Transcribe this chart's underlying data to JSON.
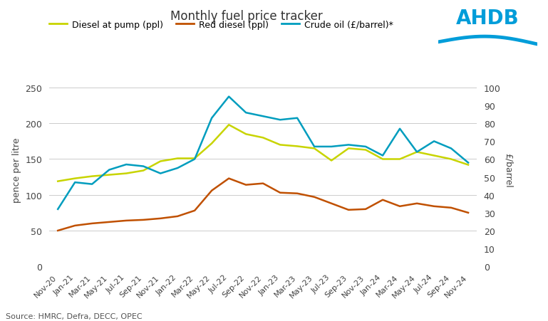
{
  "title": "Monthly fuel price tracker",
  "source": "Source: HMRC, Defra, DECC, OPEC",
  "ylabel_left": "pence per litre",
  "ylabel_right": "£/barrel",
  "ylim_left": [
    0,
    270
  ],
  "ylim_right": [
    0,
    108
  ],
  "yticks_left": [
    0,
    50,
    100,
    150,
    200,
    250
  ],
  "yticks_right": [
    0,
    10,
    20,
    30,
    40,
    50,
    60,
    70,
    80,
    90,
    100
  ],
  "x_labels": [
    "Nov-20",
    "Jan-21",
    "Mar-21",
    "May-21",
    "Jul-21",
    "Sep-21",
    "Nov-21",
    "Jan-22",
    "Mar-22",
    "May-22",
    "Jul-22",
    "Sep-22",
    "Nov-22",
    "Jan-23",
    "Mar-23",
    "May-23",
    "Jul-23",
    "Sep-23",
    "Nov-23",
    "Jan-24",
    "Mar-24",
    "May-24",
    "Jul-24",
    "Sep-24",
    "Nov-24"
  ],
  "diesel_pump": [
    119,
    123,
    126,
    128,
    130,
    134,
    147,
    151,
    151,
    172,
    198,
    185,
    180,
    170,
    168,
    165,
    148,
    165,
    163,
    150,
    150,
    160,
    155,
    150,
    142
  ],
  "red_diesel": [
    50,
    57,
    60,
    62,
    64,
    65,
    67,
    70,
    78,
    106,
    123,
    114,
    116,
    103,
    102,
    97,
    88,
    79,
    80,
    93,
    84,
    88,
    84,
    82,
    75
  ],
  "crude_oil_barrel": [
    32,
    47,
    46,
    54,
    57,
    56,
    52,
    55,
    60,
    83,
    95,
    86,
    84,
    82,
    83,
    67,
    67,
    68,
    67,
    62,
    77,
    64,
    70,
    66,
    58
  ],
  "diesel_color": "#c8d400",
  "red_diesel_color": "#c05000",
  "crude_oil_color": "#009dbe",
  "background_color": "#ffffff",
  "grid_color": "#cccccc",
  "ahdb_blue": "#009dd9",
  "legend_labels": [
    "Diesel at pump (ppl)",
    "Red diesel (ppl)",
    "Crude oil (£/barrel)*"
  ]
}
